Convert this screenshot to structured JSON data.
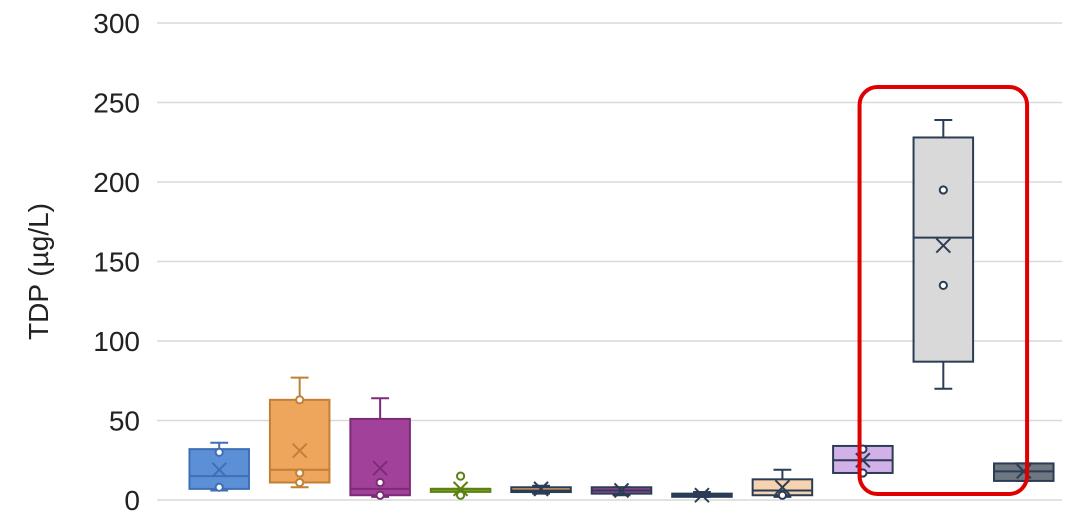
{
  "chart_data": {
    "type": "box",
    "title": "",
    "xlabel": "",
    "ylabel": "TDP (µg/L)",
    "ylim": [
      0,
      300
    ],
    "yticks": [
      0,
      50,
      100,
      150,
      200,
      250,
      300
    ],
    "grid": true,
    "highlight_box_index": 10,
    "highlight_color": "#e00000",
    "boxes": [
      {
        "fill": "#5b8fd6",
        "stroke": "#3f6fb5",
        "whisker_low": 6,
        "q1": 7,
        "median": 15,
        "q3": 32,
        "whisker_high": 36,
        "mean": 19,
        "points": [
          8,
          30
        ]
      },
      {
        "fill": "#eda65b",
        "stroke": "#c27f36",
        "whisker_low": 8,
        "q1": 11,
        "median": 19,
        "q3": 63,
        "whisker_high": 77,
        "mean": 31,
        "points": [
          11,
          17,
          63
        ]
      },
      {
        "fill": "#a2419a",
        "stroke": "#7d2b78",
        "whisker_low": 2,
        "q1": 3,
        "median": 7,
        "q3": 51,
        "whisker_high": 64,
        "mean": 20,
        "points": [
          3,
          11
        ]
      },
      {
        "fill": "#7aa51e",
        "stroke": "#5d8013",
        "whisker_low": 6,
        "q1": 6,
        "median": 7,
        "q3": 7,
        "whisker_high": 7,
        "mean": 7,
        "points": [
          3,
          15
        ]
      },
      {
        "fill": "#eda65b",
        "stroke": "#2b3d55",
        "whisker_low": 4,
        "q1": 5,
        "median": 6,
        "q3": 8,
        "whisker_high": 9,
        "mean": 7,
        "points": []
      },
      {
        "fill": "#a2419a",
        "stroke": "#2b3d55",
        "whisker_low": 3,
        "q1": 4,
        "median": 6,
        "q3": 8,
        "whisker_high": 8,
        "mean": 6,
        "points": []
      },
      {
        "fill": "#5b8fd6",
        "stroke": "#2b3d55",
        "whisker_low": 2,
        "q1": 2,
        "median": 3,
        "q3": 4,
        "whisker_high": 5,
        "mean": 3,
        "points": []
      },
      {
        "fill": "#f5d3b0",
        "stroke": "#2b3d55",
        "whisker_low": 2,
        "q1": 3,
        "median": 6,
        "q3": 13,
        "whisker_high": 19,
        "mean": 8,
        "points": [
          3
        ]
      },
      {
        "fill": "#d2b0e8",
        "stroke": "#2b3d55",
        "whisker_low": 17,
        "q1": 17,
        "median": 25,
        "q3": 34,
        "whisker_high": 34,
        "mean": 25,
        "points": [
          17,
          32
        ]
      },
      {
        "fill": "#d9d9d9",
        "stroke": "#2b3d55",
        "whisker_low": 70,
        "q1": 87,
        "median": 165,
        "q3": 228,
        "whisker_high": 239,
        "mean": 160,
        "points": [
          135,
          195
        ]
      },
      {
        "fill": "#6f7780",
        "stroke": "#2b3d55",
        "whisker_low": 12,
        "q1": 12,
        "median": 18,
        "q3": 23,
        "whisker_high": 23,
        "mean": 18,
        "points": []
      }
    ]
  }
}
